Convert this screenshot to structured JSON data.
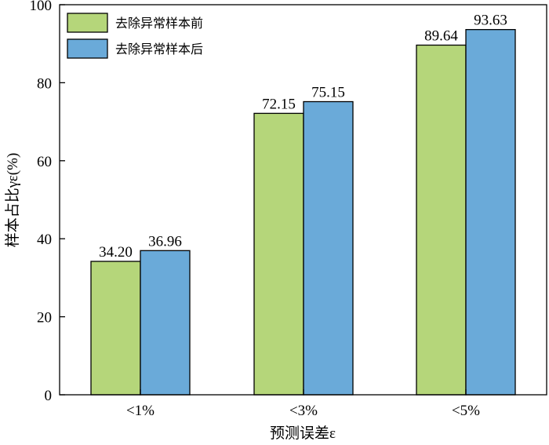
{
  "chart_data": {
    "type": "bar",
    "title": "",
    "xlabel": "预测误差ε",
    "ylabel": "样本占比γε(%)",
    "categories": [
      "<1%",
      "<3%",
      "<5%"
    ],
    "series": [
      {
        "name": "去除异常样本前",
        "values": [
          34.2,
          72.15,
          89.64
        ],
        "labels": [
          "34.20",
          "72.15",
          "89.64"
        ],
        "color": "#b5d67a"
      },
      {
        "name": "去除异常样本后",
        "values": [
          36.96,
          75.15,
          93.63
        ],
        "labels": [
          "36.96",
          "75.15",
          "93.63"
        ],
        "color": "#6aaad9"
      }
    ],
    "ylim": [
      0,
      100
    ],
    "yticks": [
      0,
      20,
      40,
      60,
      80,
      100
    ],
    "grid": false,
    "legend_position": "top-left"
  }
}
